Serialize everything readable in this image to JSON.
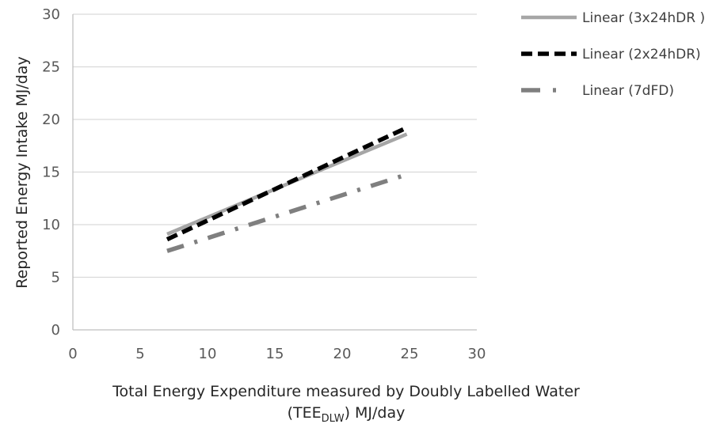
{
  "chart_data": {
    "type": "line",
    "xlabel": "Total Energy Expenditure measured by Doubly Labelled Water",
    "xlabel_line2_prefix": "(TEE",
    "xlabel_line2_sub": "DLW",
    "xlabel_line2_suffix": ") MJ/day",
    "ylabel": "Reported Energy Intake MJ/day",
    "xlim": [
      0,
      30
    ],
    "ylim": [
      0,
      30
    ],
    "xticks": [
      "0",
      "5",
      "10",
      "15",
      "20",
      "25",
      "30"
    ],
    "yticks": [
      "0",
      "5",
      "10",
      "15",
      "20",
      "25",
      "30"
    ],
    "grid": "horizontal",
    "legend_position": "top-right",
    "series": [
      {
        "name": "Linear (3x24hDR )",
        "style": "solid",
        "color": "#a6a6a6",
        "x": [
          7,
          24.8
        ],
        "y": [
          9.1,
          18.6
        ]
      },
      {
        "name": "Linear (2x24hDR)",
        "style": "dashed",
        "color": "#000000",
        "x": [
          7,
          24.6
        ],
        "y": [
          8.6,
          19.1
        ]
      },
      {
        "name": "Linear (7dFD)",
        "style": "dash-dot",
        "color": "#7f7f7f",
        "x": [
          7,
          24.4
        ],
        "y": [
          7.5,
          14.6
        ]
      }
    ]
  }
}
